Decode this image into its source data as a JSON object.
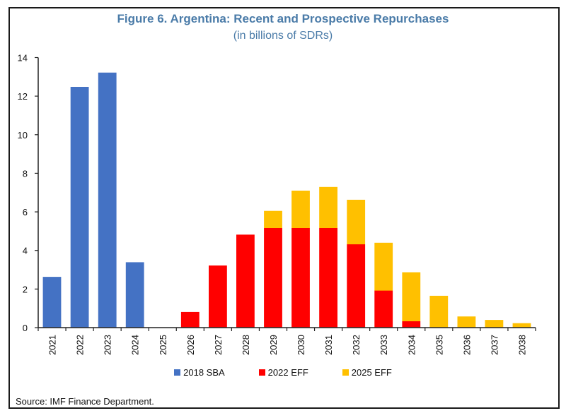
{
  "chart_data": {
    "type": "bar",
    "stacked": true,
    "title": "Figure 6. Argentina: Recent and Prospective Repurchases",
    "subtitle": "(in billions of SDRs)",
    "xlabel": "",
    "ylabel": "",
    "ylim": [
      0,
      14
    ],
    "yticks": [
      0,
      2,
      4,
      6,
      8,
      10,
      12,
      14
    ],
    "grid": false,
    "legend_position": "bottom",
    "categories": [
      "2021",
      "2022",
      "2023",
      "2024",
      "2025",
      "2026",
      "2027",
      "2028",
      "2029",
      "2030",
      "2031",
      "2032",
      "2033",
      "2034",
      "2035",
      "2036",
      "2037",
      "2038"
    ],
    "series": [
      {
        "name": "2018 SBA",
        "color": "#4472C4",
        "values": [
          2.63,
          12.48,
          13.22,
          3.39,
          0,
          0,
          0,
          0,
          0,
          0,
          0,
          0,
          0,
          0,
          0,
          0,
          0,
          0
        ]
      },
      {
        "name": "2022 EFF",
        "color": "#FF0000",
        "values": [
          0,
          0,
          0,
          0,
          0,
          0.81,
          3.22,
          4.82,
          5.16,
          5.16,
          5.16,
          4.32,
          1.92,
          0.33,
          0,
          0,
          0,
          0
        ]
      },
      {
        "name": "2025 EFF",
        "color": "#FFC000",
        "values": [
          0,
          0,
          0,
          0,
          0,
          0,
          0,
          0,
          0.89,
          1.94,
          2.13,
          2.31,
          2.48,
          2.54,
          1.65,
          0.58,
          0.4,
          0.23
        ]
      }
    ],
    "source": "Source: IMF Finance Department."
  }
}
